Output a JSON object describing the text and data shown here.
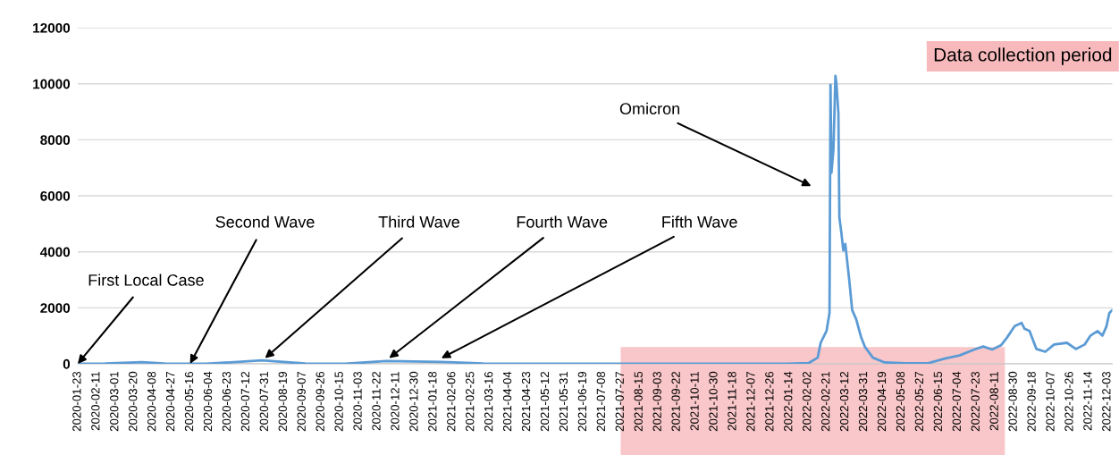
{
  "chart_data": {
    "type": "line",
    "x": [
      "2020-01-23",
      "2020-02-20",
      "2020-03-28",
      "2020-04-20",
      "2020-06-01",
      "2020-07-28",
      "2020-09-10",
      "2020-10-20",
      "2020-12-01",
      "2021-01-25",
      "2021-03-10",
      "2021-05-01",
      "2021-08-01",
      "2021-11-01",
      "2022-01-11",
      "2022-02-03",
      "2022-02-12",
      "2022-02-15",
      "2022-02-21",
      "2022-02-24",
      "2022-02-25",
      "2022-02-26",
      "2022-02-28",
      "2022-03-02",
      "2022-03-03",
      "2022-03-05",
      "2022-03-06",
      "2022-03-08",
      "2022-03-10",
      "2022-03-12",
      "2022-03-14",
      "2022-03-16",
      "2022-03-19",
      "2022-03-23",
      "2022-03-28",
      "2022-04-01",
      "2022-04-09",
      "2022-04-21",
      "2022-05-12",
      "2022-06-05",
      "2022-06-21",
      "2022-07-06",
      "2022-07-21",
      "2022-07-30",
      "2022-08-08",
      "2022-08-17",
      "2022-08-23",
      "2022-08-31",
      "2022-09-07",
      "2022-09-10",
      "2022-09-15",
      "2022-09-22",
      "2022-10-01",
      "2022-10-10",
      "2022-10-23",
      "2022-11-01",
      "2022-11-10",
      "2022-11-16",
      "2022-11-23",
      "2022-11-28",
      "2022-12-02",
      "2022-12-05",
      "2022-12-08"
    ],
    "series": [
      {
        "color": "#5b9bd5",
        "values": [
          0,
          10,
          60,
          10,
          0,
          120,
          10,
          0,
          100,
          70,
          10,
          0,
          0,
          0,
          0,
          30,
          220,
          750,
          1180,
          1820,
          9960,
          6830,
          7670,
          10280,
          10020,
          8950,
          5230,
          4690,
          4050,
          4280,
          3640,
          3000,
          1920,
          1600,
          960,
          600,
          220,
          50,
          20,
          30,
          190,
          300,
          510,
          620,
          510,
          660,
          930,
          1350,
          1460,
          1250,
          1170,
          530,
          430,
          690,
          750,
          530,
          690,
          1010,
          1170,
          1010,
          1330,
          1810,
          1920
        ]
      }
    ],
    "xlim": [
      "2020-01-23",
      "2022-12-08"
    ],
    "xticks": [
      "2020-01-23",
      "2020-02-11",
      "2020-03-01",
      "2020-03-20",
      "2020-04-08",
      "2020-04-27",
      "2020-05-16",
      "2020-06-04",
      "2020-06-23",
      "2020-07-12",
      "2020-07-31",
      "2020-08-19",
      "2020-09-07",
      "2020-09-26",
      "2020-10-15",
      "2020-11-03",
      "2020-11-22",
      "2020-12-11",
      "2020-12-30",
      "2021-01-18",
      "2021-02-06",
      "2021-02-25",
      "2021-03-16",
      "2021-04-04",
      "2021-04-23",
      "2021-05-12",
      "2021-05-31",
      "2021-06-19",
      "2021-07-08",
      "2021-07-27",
      "2021-08-15",
      "2021-09-03",
      "2021-09-22",
      "2021-10-11",
      "2021-10-30",
      "2021-11-18",
      "2021-12-07",
      "2021-12-26",
      "2022-01-14",
      "2022-02-02",
      "2022-02-21",
      "2022-03-12",
      "2022-03-31",
      "2022-04-19",
      "2022-05-08",
      "2022-05-27",
      "2022-06-15",
      "2022-07-04",
      "2022-07-23",
      "2022-08-11",
      "2022-08-30",
      "2022-09-18",
      "2022-10-07",
      "2022-10-26",
      "2022-11-14",
      "2022-12-03"
    ],
    "ylim": [
      0,
      12000
    ],
    "yticks": [
      0,
      2000,
      4000,
      6000,
      8000,
      10000,
      12000
    ],
    "grid": "y",
    "marker": "none",
    "line_style": "solid",
    "bands": [
      {
        "axis": "x",
        "from": "2021-07-27",
        "to": "2022-08-21",
        "color": "#f7b9bb"
      }
    ],
    "annotations": [
      {
        "text": "First Local Case",
        "x": "2020-01-23",
        "y": 0
      },
      {
        "text": "Second Wave",
        "x": "2020-05-16",
        "y": 0
      },
      {
        "text": "Third Wave",
        "x": "2020-07-31",
        "y": 200
      },
      {
        "text": "Fourth Wave",
        "x": "2020-12-04",
        "y": 200
      },
      {
        "text": "Fifth Wave",
        "x": "2021-01-26",
        "y": 200
      },
      "Omicron",
      "Data collection period"
    ]
  }
}
